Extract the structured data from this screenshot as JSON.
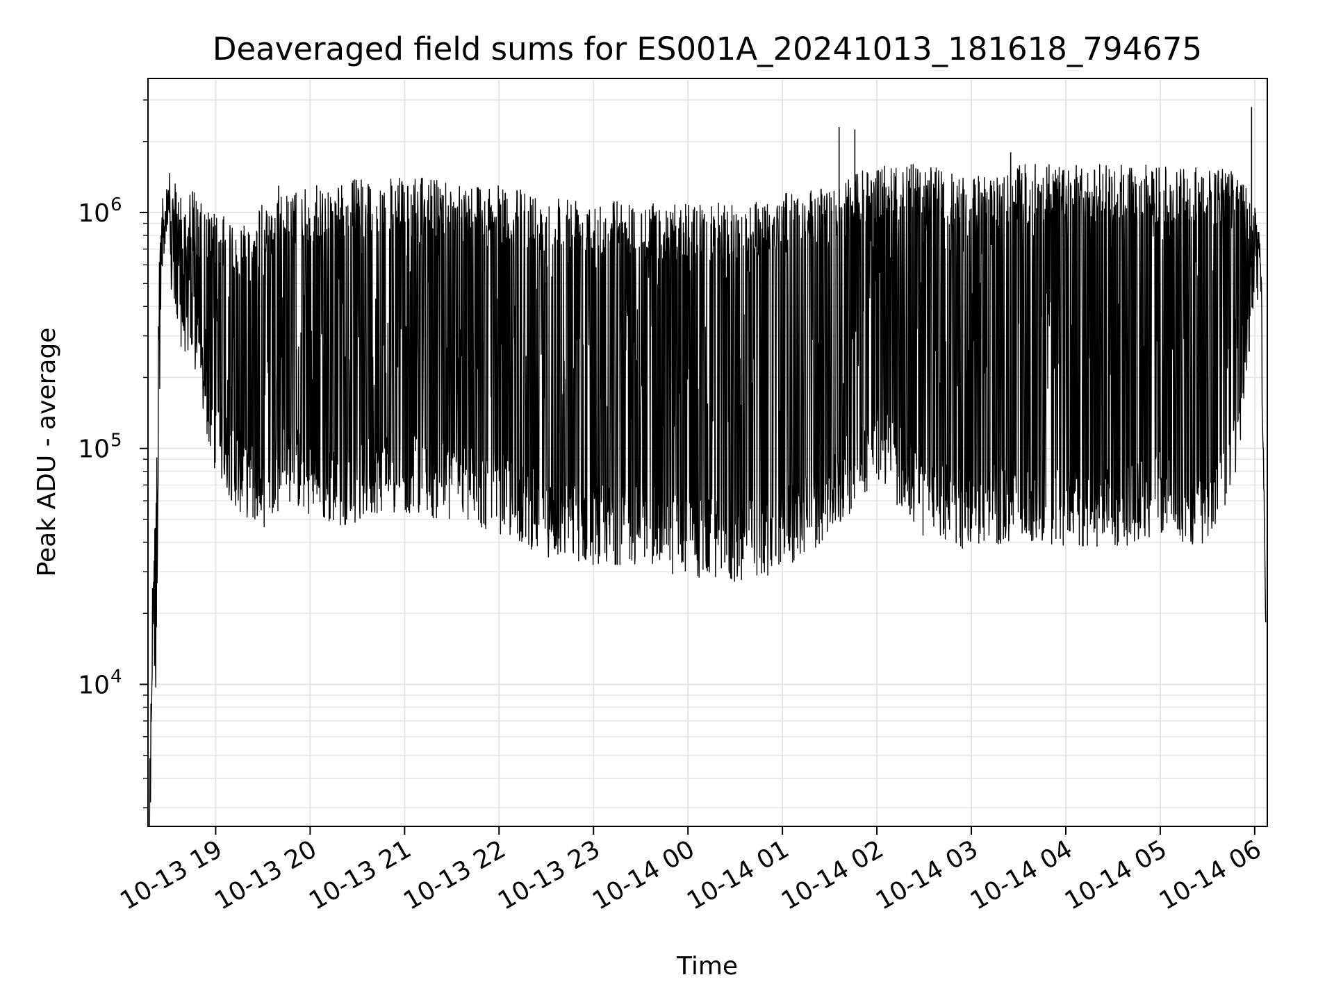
{
  "chart_data": {
    "type": "line",
    "title": "Deaveraged field sums for ES001A_20241013_181618_794675",
    "xlabel": "Time",
    "ylabel": "Peak ADU - average",
    "yscale": "log",
    "ylim": [
      2500,
      3700000
    ],
    "xlim": [
      "2024-10-13T18:17:00",
      "2024-10-14T06:08:00"
    ],
    "grid": true,
    "line_color": "#000000",
    "grid_color": "#e6e6e6",
    "x_ticks": [
      {
        "time": "2024-10-13T19:00:00",
        "label": "10-13 19"
      },
      {
        "time": "2024-10-13T20:00:00",
        "label": "10-13 20"
      },
      {
        "time": "2024-10-13T21:00:00",
        "label": "10-13 21"
      },
      {
        "time": "2024-10-13T22:00:00",
        "label": "10-13 22"
      },
      {
        "time": "2024-10-13T23:00:00",
        "label": "10-13 23"
      },
      {
        "time": "2024-10-14T00:00:00",
        "label": "10-14 00"
      },
      {
        "time": "2024-10-14T01:00:00",
        "label": "10-14 01"
      },
      {
        "time": "2024-10-14T02:00:00",
        "label": "10-14 02"
      },
      {
        "time": "2024-10-14T03:00:00",
        "label": "10-14 03"
      },
      {
        "time": "2024-10-14T04:00:00",
        "label": "10-14 04"
      },
      {
        "time": "2024-10-14T05:00:00",
        "label": "10-14 05"
      },
      {
        "time": "2024-10-14T06:00:00",
        "label": "10-14 06"
      }
    ],
    "y_ticks": [
      {
        "value": 10000,
        "base": "10",
        "exp": "4"
      },
      {
        "value": 100000,
        "base": "10",
        "exp": "5"
      },
      {
        "value": 1000000,
        "base": "10",
        "exp": "6"
      }
    ],
    "series": [
      {
        "envelope_times": [
          "2024-10-13T18:18:00",
          "2024-10-13T18:20:00",
          "2024-10-13T18:22:00",
          "2024-10-13T18:24:00",
          "2024-10-13T18:26:00",
          "2024-10-13T18:30:00",
          "2024-10-13T18:35:00",
          "2024-10-13T18:40:00",
          "2024-10-13T18:45:00",
          "2024-10-13T18:50:00",
          "2024-10-13T19:00:00",
          "2024-10-13T19:15:00",
          "2024-10-13T19:30:00",
          "2024-10-13T19:45:00",
          "2024-10-13T20:00:00",
          "2024-10-13T20:15:00",
          "2024-10-13T20:30:00",
          "2024-10-13T20:45:00",
          "2024-10-13T21:00:00",
          "2024-10-13T21:30:00",
          "2024-10-13T22:00:00",
          "2024-10-13T22:30:00",
          "2024-10-13T23:00:00",
          "2024-10-13T23:30:00",
          "2024-10-14T00:00:00",
          "2024-10-14T00:30:00",
          "2024-10-14T01:00:00",
          "2024-10-14T01:30:00",
          "2024-10-14T02:00:00",
          "2024-10-14T02:30:00",
          "2024-10-14T03:00:00",
          "2024-10-14T03:30:00",
          "2024-10-14T04:00:00",
          "2024-10-14T04:30:00",
          "2024-10-14T05:00:00",
          "2024-10-14T05:30:00",
          "2024-10-14T05:50:00",
          "2024-10-14T06:00:00",
          "2024-10-14T06:04:00",
          "2024-10-14T06:07:00"
        ],
        "baseline": [
          2600,
          22000,
          12000,
          200000,
          700000,
          800000,
          420000,
          380000,
          350000,
          230000,
          110000,
          80000,
          68000,
          90000,
          75000,
          70000,
          72000,
          80000,
          80000,
          72000,
          65000,
          52000,
          48000,
          48000,
          42000,
          40000,
          45000,
          62000,
          110000,
          62000,
          55000,
          60000,
          55000,
          55000,
          65000,
          55000,
          120000,
          700000,
          500000,
          17000
        ],
        "peak": [
          2600,
          25000,
          80000,
          600000,
          1300000,
          1500000,
          1300000,
          1200000,
          1300000,
          1100000,
          1000000,
          900000,
          1100000,
          1200000,
          1300000,
          1300000,
          1400000,
          1400000,
          1400000,
          1400000,
          1300000,
          1200000,
          1200000,
          1100000,
          1100000,
          1100000,
          1200000,
          1300000,
          1600000,
          1600000,
          1400000,
          1600000,
          1600000,
          1600000,
          1600000,
          1600000,
          1500000,
          1200000,
          800000,
          20000
        ]
      }
    ],
    "spikes": [
      {
        "time": "2024-10-14T01:36:00",
        "value": 2300000
      },
      {
        "time": "2024-10-14T01:46:00",
        "value": 2250000
      },
      {
        "time": "2024-10-14T05:58:00",
        "value": 2800000
      },
      {
        "time": "2024-10-13T19:40:00",
        "value": 1300000
      },
      {
        "time": "2024-10-14T03:25:00",
        "value": 1800000
      }
    ]
  }
}
